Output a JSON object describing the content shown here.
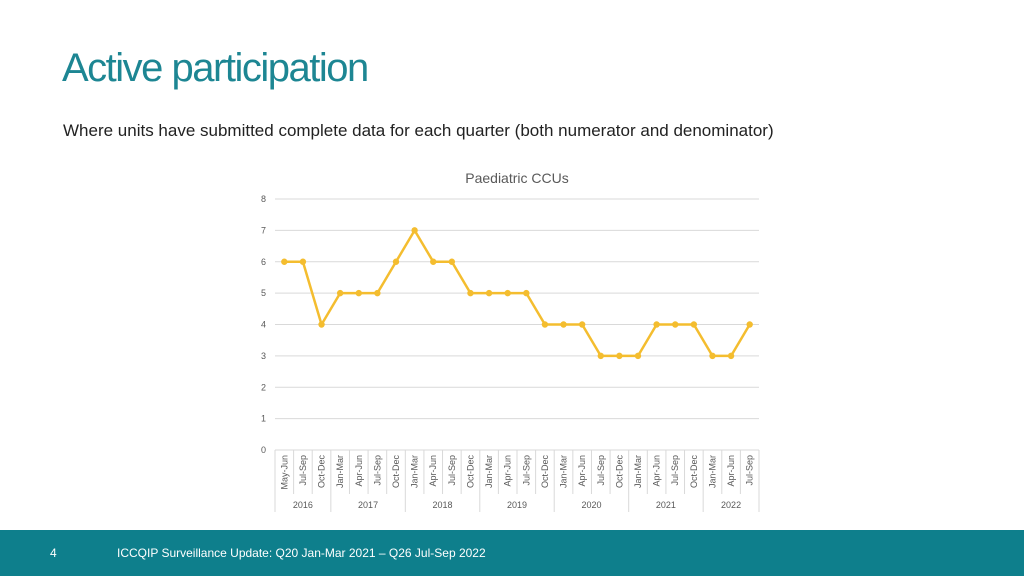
{
  "colors": {
    "title": "#1d8693",
    "footer": "#0e7f8c",
    "line": "#f4bd2f",
    "grid": "#d9d9d9",
    "tick": "#595959"
  },
  "slide": {
    "title": "Active participation",
    "subtitle": "Where units have submitted complete data for each quarter (both numerator and denominator)"
  },
  "footer": {
    "page_number": "4",
    "text": "ICCQIP Surveillance Update: Q20 Jan-Mar 2021 – Q26 Jul-Sep 2022"
  },
  "chart_data": {
    "type": "line",
    "title": "Paediatric CCUs",
    "xlabel": "",
    "ylabel": "",
    "ylim": [
      0,
      8
    ],
    "yticks": [
      0,
      1,
      2,
      3,
      4,
      5,
      6,
      7,
      8
    ],
    "grid": true,
    "legend": "none",
    "categories": [
      "May-Jun",
      "Jul-Sep",
      "Oct-Dec",
      "Jan-Mar",
      "Apr-Jun",
      "Jul-Sep",
      "Oct-Dec",
      "Jan-Mar",
      "Apr-Jun",
      "Jul-Sep",
      "Oct-Dec",
      "Jan-Mar",
      "Apr-Jun",
      "Jul-Sep",
      "Oct-Dec",
      "Jan-Mar",
      "Apr-Jun",
      "Jul-Sep",
      "Oct-Dec",
      "Jan-Mar",
      "Apr-Jun",
      "Jul-Sep",
      "Oct-Dec",
      "Jan-Mar",
      "Apr-Jun",
      "Jul-Sep"
    ],
    "groups": [
      {
        "label": "2016",
        "count": 3
      },
      {
        "label": "2017",
        "count": 4
      },
      {
        "label": "2018",
        "count": 4
      },
      {
        "label": "2019",
        "count": 4
      },
      {
        "label": "2020",
        "count": 4
      },
      {
        "label": "2021",
        "count": 4
      },
      {
        "label": "2022",
        "count": 3
      }
    ],
    "series": [
      {
        "values": [
          6,
          6,
          4,
          5,
          5,
          5,
          6,
          7,
          6,
          6,
          5,
          5,
          5,
          5,
          4,
          4,
          4,
          3,
          3,
          3,
          4,
          4,
          4,
          3,
          3,
          4
        ]
      }
    ]
  }
}
